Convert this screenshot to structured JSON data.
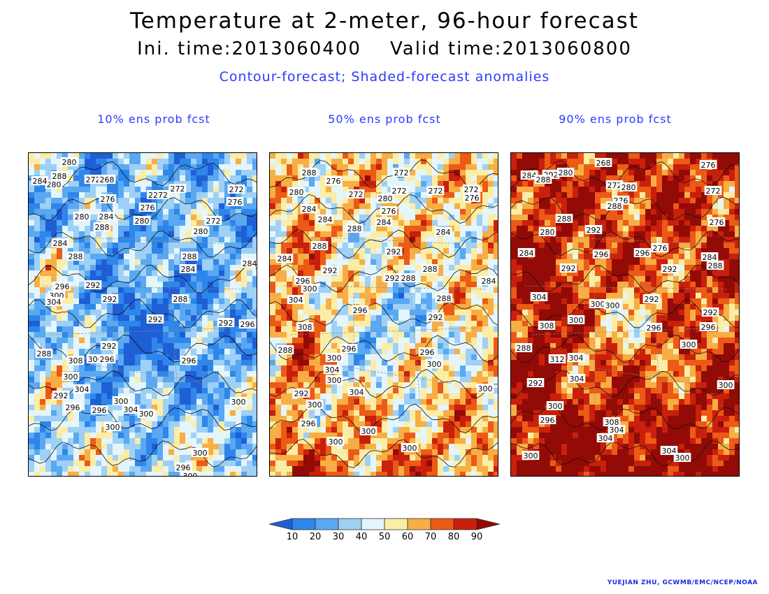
{
  "header": {
    "title": "Temperature at 2-meter, 96-hour forecast",
    "subtitle": "Ini. time:2013060400    Valid time:2013060800",
    "description": "Contour-forecast; Shaded-forecast anomalies"
  },
  "panels": [
    {
      "title": "10% ens prob fcst",
      "labels": [
        {
          "t": "280",
          "x": 58,
          "y": 13
        },
        {
          "t": "288",
          "x": 44,
          "y": 33
        },
        {
          "t": "280",
          "x": 36,
          "y": 45
        },
        {
          "t": "284",
          "x": 16,
          "y": 40
        },
        {
          "t": "272",
          "x": 92,
          "y": 38
        },
        {
          "t": "268",
          "x": 112,
          "y": 38
        },
        {
          "t": "276",
          "x": 113,
          "y": 66
        },
        {
          "t": "2272",
          "x": 185,
          "y": 60
        },
        {
          "t": "272",
          "x": 213,
          "y": 51
        },
        {
          "t": "272",
          "x": 297,
          "y": 52
        },
        {
          "t": "276",
          "x": 295,
          "y": 70
        },
        {
          "t": "276",
          "x": 170,
          "y": 78
        },
        {
          "t": "280",
          "x": 76,
          "y": 91
        },
        {
          "t": "284",
          "x": 111,
          "y": 91
        },
        {
          "t": "288",
          "x": 105,
          "y": 106
        },
        {
          "t": "280",
          "x": 162,
          "y": 97
        },
        {
          "t": "272",
          "x": 264,
          "y": 97
        },
        {
          "t": "280",
          "x": 246,
          "y": 112
        },
        {
          "t": "284",
          "x": 45,
          "y": 129
        },
        {
          "t": "288",
          "x": 67,
          "y": 148
        },
        {
          "t": "288",
          "x": 230,
          "y": 148
        },
        {
          "t": "284",
          "x": 228,
          "y": 166
        },
        {
          "t": "284",
          "x": 316,
          "y": 158
        },
        {
          "t": "296",
          "x": 48,
          "y": 191
        },
        {
          "t": "292",
          "x": 92,
          "y": 189
        },
        {
          "t": "300",
          "x": 40,
          "y": 204
        },
        {
          "t": "304",
          "x": 36,
          "y": 213
        },
        {
          "t": "292",
          "x": 116,
          "y": 209
        },
        {
          "t": "288",
          "x": 217,
          "y": 209
        },
        {
          "t": "292",
          "x": 181,
          "y": 238
        },
        {
          "t": "292",
          "x": 282,
          "y": 243
        },
        {
          "t": "296",
          "x": 313,
          "y": 245
        },
        {
          "t": "292",
          "x": 115,
          "y": 276
        },
        {
          "t": "288",
          "x": 22,
          "y": 287
        },
        {
          "t": "308",
          "x": 67,
          "y": 297
        },
        {
          "t": "300",
          "x": 95,
          "y": 295
        },
        {
          "t": "296",
          "x": 112,
          "y": 295
        },
        {
          "t": "296",
          "x": 229,
          "y": 297
        },
        {
          "t": "300",
          "x": 60,
          "y": 320
        },
        {
          "t": "304",
          "x": 76,
          "y": 338
        },
        {
          "t": "292",
          "x": 46,
          "y": 347
        },
        {
          "t": "296",
          "x": 63,
          "y": 364
        },
        {
          "t": "300",
          "x": 132,
          "y": 355
        },
        {
          "t": "300",
          "x": 300,
          "y": 356
        },
        {
          "t": "296",
          "x": 101,
          "y": 368
        },
        {
          "t": "304",
          "x": 146,
          "y": 367
        },
        {
          "t": "300",
          "x": 168,
          "y": 373
        },
        {
          "t": "300",
          "x": 120,
          "y": 392
        },
        {
          "t": "300",
          "x": 245,
          "y": 429
        },
        {
          "t": "296",
          "x": 221,
          "y": 450
        },
        {
          "t": "300",
          "x": 231,
          "y": 462
        }
      ]
    },
    {
      "title": "50% ens prob fcst",
      "labels": [
        {
          "t": "288",
          "x": 56,
          "y": 28
        },
        {
          "t": "276",
          "x": 91,
          "y": 40
        },
        {
          "t": "272",
          "x": 188,
          "y": 28
        },
        {
          "t": "280",
          "x": 38,
          "y": 56
        },
        {
          "t": "272",
          "x": 123,
          "y": 59
        },
        {
          "t": "272",
          "x": 185,
          "y": 54
        },
        {
          "t": "272",
          "x": 237,
          "y": 54
        },
        {
          "t": "272",
          "x": 288,
          "y": 52
        },
        {
          "t": "276",
          "x": 289,
          "y": 64
        },
        {
          "t": "280",
          "x": 165,
          "y": 65
        },
        {
          "t": "284",
          "x": 56,
          "y": 80
        },
        {
          "t": "276",
          "x": 170,
          "y": 83
        },
        {
          "t": "284",
          "x": 79,
          "y": 95
        },
        {
          "t": "284",
          "x": 163,
          "y": 99
        },
        {
          "t": "288",
          "x": 121,
          "y": 108
        },
        {
          "t": "284",
          "x": 248,
          "y": 113
        },
        {
          "t": "288",
          "x": 71,
          "y": 133
        },
        {
          "t": "292",
          "x": 177,
          "y": 141
        },
        {
          "t": "284",
          "x": 21,
          "y": 151
        },
        {
          "t": "292",
          "x": 86,
          "y": 168
        },
        {
          "t": "288",
          "x": 229,
          "y": 166
        },
        {
          "t": "296",
          "x": 47,
          "y": 183
        },
        {
          "t": "300",
          "x": 57,
          "y": 194
        },
        {
          "t": "292",
          "x": 175,
          "y": 179
        },
        {
          "t": "288",
          "x": 198,
          "y": 179
        },
        {
          "t": "284",
          "x": 313,
          "y": 183
        },
        {
          "t": "304",
          "x": 37,
          "y": 210
        },
        {
          "t": "288",
          "x": 249,
          "y": 208
        },
        {
          "t": "296",
          "x": 129,
          "y": 225
        },
        {
          "t": "292",
          "x": 237,
          "y": 235
        },
        {
          "t": "308",
          "x": 50,
          "y": 249
        },
        {
          "t": "288",
          "x": 22,
          "y": 282
        },
        {
          "t": "296",
          "x": 113,
          "y": 280
        },
        {
          "t": "296",
          "x": 225,
          "y": 285
        },
        {
          "t": "300",
          "x": 92,
          "y": 293
        },
        {
          "t": "300",
          "x": 235,
          "y": 302
        },
        {
          "t": "304",
          "x": 89,
          "y": 310
        },
        {
          "t": "300",
          "x": 92,
          "y": 325
        },
        {
          "t": "304",
          "x": 124,
          "y": 342
        },
        {
          "t": "292",
          "x": 45,
          "y": 344
        },
        {
          "t": "300",
          "x": 308,
          "y": 337
        },
        {
          "t": "300",
          "x": 64,
          "y": 360
        },
        {
          "t": "296",
          "x": 55,
          "y": 387
        },
        {
          "t": "300",
          "x": 141,
          "y": 398
        },
        {
          "t": "300",
          "x": 94,
          "y": 413
        },
        {
          "t": "300",
          "x": 200,
          "y": 422
        }
      ]
    },
    {
      "title": "90% ens prob fcst",
      "labels": [
        {
          "t": "268",
          "x": 132,
          "y": 14
        },
        {
          "t": "276",
          "x": 282,
          "y": 17
        },
        {
          "t": "284",
          "x": 26,
          "y": 32
        },
        {
          "t": "292",
          "x": 57,
          "y": 31
        },
        {
          "t": "280",
          "x": 78,
          "y": 28
        },
        {
          "t": "288",
          "x": 46,
          "y": 38
        },
        {
          "t": "272",
          "x": 148,
          "y": 46
        },
        {
          "t": "280",
          "x": 168,
          "y": 49
        },
        {
          "t": "272",
          "x": 289,
          "y": 54
        },
        {
          "t": "276",
          "x": 157,
          "y": 68
        },
        {
          "t": "288",
          "x": 148,
          "y": 76
        },
        {
          "t": "288",
          "x": 76,
          "y": 94
        },
        {
          "t": "276",
          "x": 294,
          "y": 99
        },
        {
          "t": "292",
          "x": 118,
          "y": 110
        },
        {
          "t": "280",
          "x": 52,
          "y": 113
        },
        {
          "t": "296",
          "x": 129,
          "y": 145
        },
        {
          "t": "296",
          "x": 188,
          "y": 143
        },
        {
          "t": "276",
          "x": 213,
          "y": 136
        },
        {
          "t": "292",
          "x": 227,
          "y": 166
        },
        {
          "t": "284",
          "x": 284,
          "y": 149
        },
        {
          "t": "288",
          "x": 292,
          "y": 161
        },
        {
          "t": "284",
          "x": 22,
          "y": 143
        },
        {
          "t": "292",
          "x": 82,
          "y": 165
        },
        {
          "t": "292",
          "x": 201,
          "y": 209
        },
        {
          "t": "300",
          "x": 124,
          "y": 216
        },
        {
          "t": "300",
          "x": 145,
          "y": 218
        },
        {
          "t": "304",
          "x": 40,
          "y": 206
        },
        {
          "t": "292",
          "x": 285,
          "y": 228
        },
        {
          "t": "296",
          "x": 282,
          "y": 249
        },
        {
          "t": "300",
          "x": 93,
          "y": 239
        },
        {
          "t": "308",
          "x": 51,
          "y": 247
        },
        {
          "t": "296",
          "x": 204,
          "y": 250
        },
        {
          "t": "300",
          "x": 254,
          "y": 274
        },
        {
          "t": "288",
          "x": 18,
          "y": 279
        },
        {
          "t": "304",
          "x": 93,
          "y": 293
        },
        {
          "t": "312",
          "x": 66,
          "y": 295
        },
        {
          "t": "304",
          "x": 94,
          "y": 323
        },
        {
          "t": "292",
          "x": 35,
          "y": 329
        },
        {
          "t": "300",
          "x": 307,
          "y": 332
        },
        {
          "t": "300",
          "x": 63,
          "y": 362
        },
        {
          "t": "296",
          "x": 52,
          "y": 382
        },
        {
          "t": "308",
          "x": 144,
          "y": 385
        },
        {
          "t": "304",
          "x": 151,
          "y": 396
        },
        {
          "t": "304",
          "x": 135,
          "y": 408
        },
        {
          "t": "304",
          "x": 226,
          "y": 426
        },
        {
          "t": "300",
          "x": 245,
          "y": 436
        },
        {
          "t": "300",
          "x": 28,
          "y": 433
        }
      ]
    }
  ],
  "colorbar": {
    "ticks": [
      "10",
      "20",
      "30",
      "40",
      "50",
      "60",
      "70",
      "80",
      "90"
    ],
    "colors": [
      "#1f5fd6",
      "#2e86ea",
      "#5aa8f2",
      "#9fd0f6",
      "#e4f6fb",
      "#fbeda6",
      "#f7ae45",
      "#ec5a16",
      "#c8200c",
      "#920b06"
    ]
  },
  "credit": "YUEJIAN ZHU, GCWMB/EMC/NCEP/NOAA"
}
